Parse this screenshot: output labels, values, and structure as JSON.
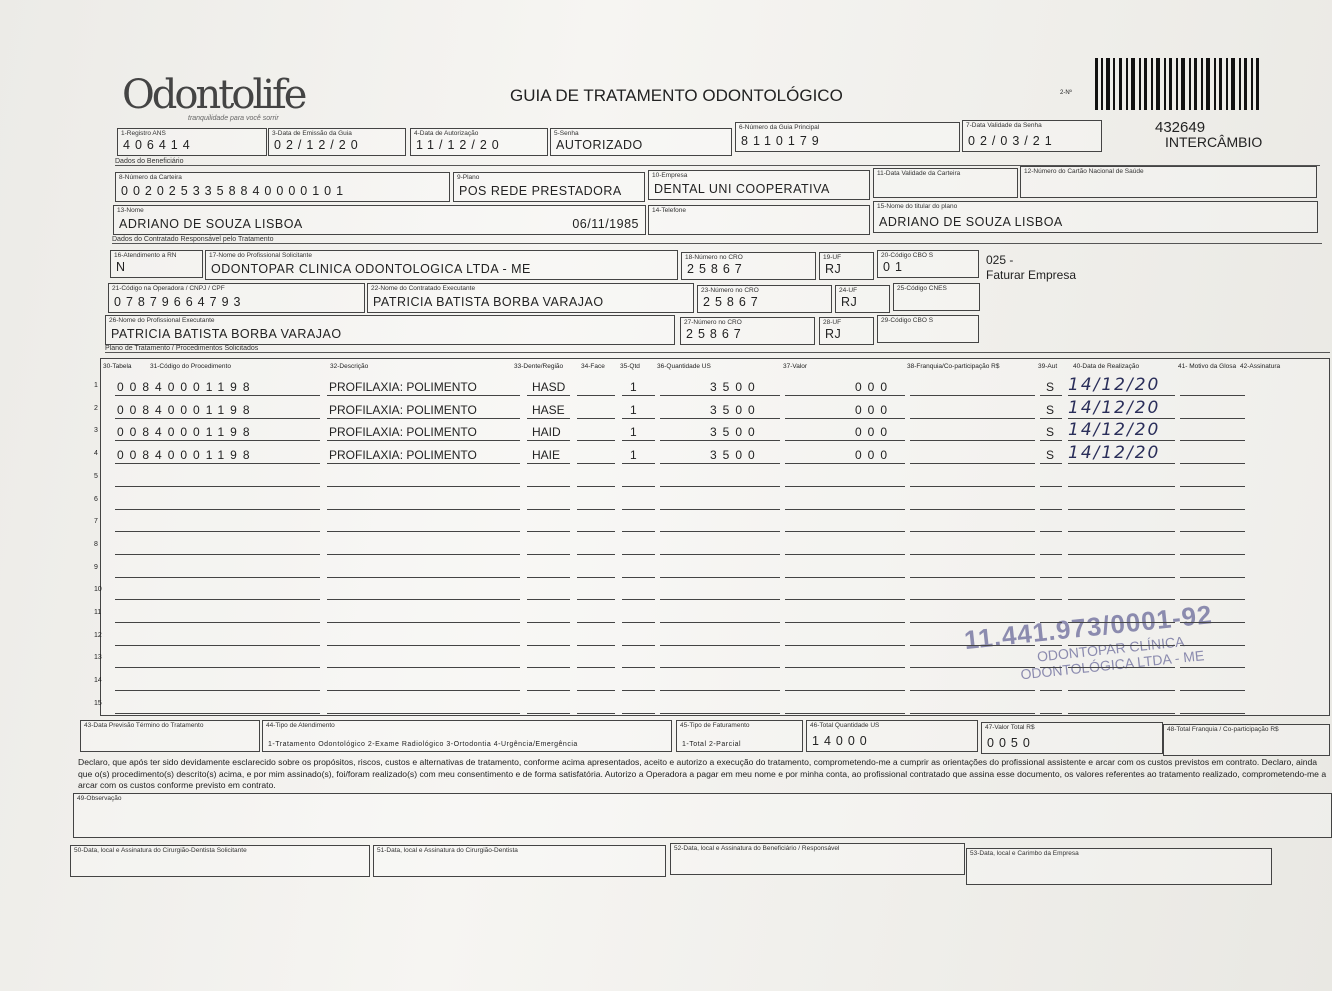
{
  "header": {
    "logo": "Odontolife",
    "tagline": "tranquilidade para você sorrir",
    "title": "GUIA DE TRATAMENTO ODONTOLÓGICO",
    "number_label": "2-Nº",
    "number": "432649",
    "type": "INTERCÂMBIO"
  },
  "sections": {
    "beneficiary": "Dados do Beneficiário",
    "contractor": "Dados do Contratado Responsável pelo Tratamento",
    "plan": "Plano de Tratamento / Procedimentos Solicitados"
  },
  "fields": {
    "f1": {
      "label": "1-Registro ANS",
      "value": "406414"
    },
    "f3": {
      "label": "3-Data de Emissão da Guia",
      "value": "02/12/20"
    },
    "f4": {
      "label": "4-Data de Autorização",
      "value": "11/12/20"
    },
    "f5": {
      "label": "5-Senha",
      "value": "AUTORIZADO"
    },
    "f6": {
      "label": "6-Número da Guia Principal",
      "value": "8110179"
    },
    "f7": {
      "label": "7-Data Validade da Senha",
      "value": "02/03/21"
    },
    "f8": {
      "label": "8-Número da Carteira",
      "value": "0020253358840000101"
    },
    "f9": {
      "label": "9-Plano",
      "value": "POS REDE PRESTADORA"
    },
    "f10": {
      "label": "10-Empresa",
      "value": "DENTAL UNI  COOPERATIVA"
    },
    "f11": {
      "label": "11-Data Validade da Carteira"
    },
    "f12": {
      "label": "12-Número do Cartão Nacional de Saúde"
    },
    "f13": {
      "label": "13-Nome",
      "value": "ADRIANO DE SOUZA LISBOA",
      "extra": "06/11/1985"
    },
    "f14": {
      "label": "14-Telefone"
    },
    "f15": {
      "label": "15-Nome do titular do plano",
      "value": "ADRIANO DE SOUZA LISBOA"
    },
    "f16": {
      "label": "16-Atendimento a RN",
      "value": "N"
    },
    "f17": {
      "label": "17-Nome do Profissional Solicitante",
      "value": "ODONTOPAR CLINICA ODONTOLOGICA LTDA - ME"
    },
    "f18": {
      "label": "18-Número no CRO",
      "value": "25867"
    },
    "f19": {
      "label": "19-UF",
      "value": "RJ"
    },
    "f20": {
      "label": "20-Código CBO S",
      "value": "01"
    },
    "f21": {
      "label": "21-Código na Operadora / CNPJ / CPF",
      "value": "07879664793"
    },
    "f22": {
      "label": "22-Nome do Contratado Executante",
      "value": "PATRICIA BATISTA BORBA VARAJAO"
    },
    "f23": {
      "label": "23-Número no CRO",
      "value": "25867"
    },
    "f24": {
      "label": "24-UF",
      "value": "RJ"
    },
    "f25": {
      "label": "25-Código CNES"
    },
    "f26": {
      "label": "26-Nome do Profissional Executante",
      "value": "PATRICIA BATISTA BORBA VARAJAO"
    },
    "f27": {
      "label": "27-Número no CRO",
      "value": "25867"
    },
    "f28": {
      "label": "28-UF",
      "value": "RJ"
    },
    "f29": {
      "label": "29-Código CBO S"
    },
    "f43": {
      "label": "43-Data Previsão Término do Tratamento"
    },
    "f44": {
      "label": "44-Tipo de Atendimento",
      "value": "1-Tratamento Odontológico 2-Exame Radiológico 3-Ortodontia 4-Urgência/Emergência"
    },
    "f45": {
      "label": "45-Tipo de Faturamento",
      "value": "1-Total 2-Parcial"
    },
    "f46": {
      "label": "46-Total Quantidade US",
      "value": "14000"
    },
    "f47": {
      "label": "47-Valor Total R$",
      "value": "0050"
    },
    "f48": {
      "label": "48-Total Franquia / Co-participação R$"
    },
    "f49": {
      "label": "49-Observação"
    },
    "f50": {
      "label": "50-Data, local e Assinatura do Cirurgião-Dentista Solicitante"
    },
    "f51": {
      "label": "51-Data, local e Assinatura do Cirurgião-Dentista"
    },
    "f52": {
      "label": "52-Data, local e Assinatura do Beneficiário / Responsável"
    },
    "f53": {
      "label": "53-Data, local e Carimbo da Empresa"
    }
  },
  "note": {
    "code": "025 -",
    "text": "Faturar Empresa"
  },
  "procedures": {
    "columns": [
      "30-Tabela",
      "31-Código do Procedimento",
      "32-Descrição",
      "33-Dente/Região",
      "34-Face",
      "35-Qtd",
      "36-Quantidade US",
      "37-Valor",
      "38-Franquia/Co-participação R$",
      "39-Aut",
      "40-Data de Realização",
      "41- Motivo da Glosa",
      "42-Assinatura"
    ],
    "rows": [
      {
        "number": "1",
        "code": "00840001198",
        "description": "PROFILAXIA: POLIMENTO",
        "tooth": "HASD",
        "qty": "1",
        "us": "3500",
        "value": "000",
        "aut": "S",
        "date": "14/12/20"
      },
      {
        "number": "2",
        "code": "00840001198",
        "description": "PROFILAXIA: POLIMENTO",
        "tooth": "HASE",
        "qty": "1",
        "us": "3500",
        "value": "000",
        "aut": "S",
        "date": "14/12/20"
      },
      {
        "number": "3",
        "code": "00840001198",
        "description": "PROFILAXIA: POLIMENTO",
        "tooth": "HAID",
        "qty": "1",
        "us": "3500",
        "value": "000",
        "aut": "S",
        "date": "14/12/20"
      },
      {
        "number": "4",
        "code": "00840001198",
        "description": "PROFILAXIA: POLIMENTO",
        "tooth": "HAIE",
        "qty": "1",
        "us": "3500",
        "value": "000",
        "aut": "S",
        "date": "14/12/20"
      },
      {
        "number": "5"
      },
      {
        "number": "6"
      },
      {
        "number": "7"
      },
      {
        "number": "8"
      },
      {
        "number": "9"
      },
      {
        "number": "10"
      },
      {
        "number": "11"
      },
      {
        "number": "12"
      },
      {
        "number": "13"
      },
      {
        "number": "14"
      },
      {
        "number": "15"
      }
    ]
  },
  "declaration": "Declaro, que após ter sido devidamente esclarecido sobre os propósitos, riscos, custos e alternativas de tratamento, conforme acima apresentados, aceito e autorizo a execução do tratamento, comprometendo-me a cumprir as orientações do profissional assistente e arcar com os custos previstos em contrato. Declaro, ainda que o(s) procedimento(s) descrito(s) acima, e por mim assinado(s), foi/foram realizado(s) com meu consentimento e de forma satisfatória. Autorizo a Operadora a pagar em meu nome e por minha conta, ao profissional contratado que assina esse documento, os valores referentes ao tratamento realizado, comprometendo-me a arcar com os custos conforme previsto em contrato.",
  "stamp": {
    "cnpj": "11.441.973/0001-92",
    "name": "ODONTOPAR CLÍNICA ODONTOLÓGICA LTDA - ME"
  }
}
